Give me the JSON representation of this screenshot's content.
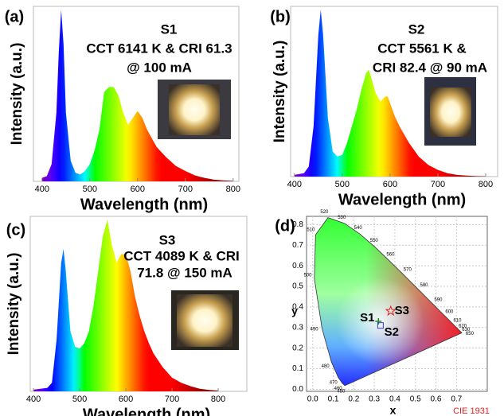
{
  "chart_data": [
    {
      "type": "area",
      "label": "(a)",
      "annotations": [
        "S1",
        "CCT 6141 K & CRI 61.3",
        "@ 100 mA"
      ],
      "x_label": "Wavelength (nm)",
      "y_label": "Intensity (a.u.)",
      "x": [
        400,
        410,
        420,
        430,
        435,
        440,
        445,
        450,
        460,
        470,
        480,
        490,
        500,
        510,
        520,
        530,
        540,
        550,
        560,
        570,
        580,
        590,
        600,
        610,
        620,
        630,
        640,
        650,
        660,
        680,
        700,
        720,
        740,
        760,
        780,
        800
      ],
      "values": [
        0.02,
        0.03,
        0.1,
        0.4,
        0.75,
        1.0,
        0.8,
        0.4,
        0.12,
        0.05,
        0.04,
        0.06,
        0.1,
        0.18,
        0.3,
        0.52,
        0.55,
        0.55,
        0.5,
        0.4,
        0.33,
        0.37,
        0.41,
        0.37,
        0.3,
        0.25,
        0.2,
        0.17,
        0.14,
        0.09,
        0.06,
        0.035,
        0.02,
        0.01,
        0.005,
        0.003
      ],
      "xlim": [
        382,
        812
      ],
      "xticks": [
        400,
        500,
        600,
        700,
        800
      ],
      "ylim": [
        0,
        1.02
      ]
    },
    {
      "type": "area",
      "label": "(b)",
      "annotations": [
        "S2",
        "CCT 5561 K &",
        "CRI 82.4 @ 90 mA"
      ],
      "x_label": "Wavelength (nm)",
      "y_label": "Intensity (a.u.)",
      "x": [
        400,
        420,
        430,
        440,
        450,
        455,
        460,
        470,
        480,
        490,
        500,
        510,
        520,
        530,
        540,
        550,
        555,
        560,
        570,
        580,
        590,
        595,
        600,
        610,
        620,
        630,
        640,
        650,
        660,
        680,
        700,
        720,
        740,
        760,
        780,
        800
      ],
      "values": [
        0.01,
        0.02,
        0.06,
        0.3,
        0.85,
        1.0,
        0.85,
        0.35,
        0.15,
        0.12,
        0.13,
        0.2,
        0.3,
        0.4,
        0.52,
        0.62,
        0.64,
        0.6,
        0.5,
        0.45,
        0.48,
        0.48,
        0.44,
        0.36,
        0.3,
        0.25,
        0.2,
        0.16,
        0.12,
        0.07,
        0.04,
        0.02,
        0.01,
        0.006,
        0.003,
        0.002
      ],
      "xlim": [
        392,
        825
      ],
      "xticks": [
        400,
        500,
        600,
        700,
        800
      ],
      "ylim": [
        0,
        1.02
      ]
    },
    {
      "type": "area",
      "label": "(c)",
      "annotations": [
        "S3",
        "CCT 4089 K & CRI",
        "71.8 @ 150 mA"
      ],
      "x_label": "Wavelength (nm)",
      "y_label": "Intensity (a.u.)",
      "x": [
        400,
        430,
        440,
        450,
        460,
        465,
        470,
        480,
        490,
        500,
        510,
        520,
        530,
        540,
        550,
        560,
        570,
        580,
        590,
        600,
        610,
        620,
        630,
        640,
        650,
        660,
        680,
        700,
        720,
        740,
        760,
        780,
        800
      ],
      "values": [
        0.01,
        0.02,
        0.05,
        0.3,
        0.75,
        0.83,
        0.7,
        0.35,
        0.26,
        0.25,
        0.28,
        0.35,
        0.5,
        0.7,
        0.9,
        1.0,
        0.85,
        0.75,
        0.8,
        0.8,
        0.7,
        0.55,
        0.44,
        0.35,
        0.28,
        0.22,
        0.14,
        0.08,
        0.05,
        0.03,
        0.015,
        0.008,
        0.004
      ],
      "xlim": [
        393,
        862
      ],
      "xticks": [
        400,
        500,
        600,
        700,
        800
      ],
      "ylim": [
        0,
        1.02
      ]
    },
    {
      "type": "cie",
      "label": "(d)",
      "x_label": "x",
      "y_label": "y",
      "note": "CIE 1931",
      "xlim": [
        -0.03,
        0.85
      ],
      "ylim": [
        -0.01,
        0.84
      ],
      "grid": true,
      "xticks": [
        {
          "value": 0,
          "label": "0.0"
        },
        {
          "value": 0.1,
          "label": "0.1"
        },
        {
          "value": 0.2,
          "label": "0.2"
        },
        {
          "value": 0.3,
          "label": "0.3"
        },
        {
          "value": 0.4,
          "label": "0.4"
        },
        {
          "value": 0.5,
          "label": "0.5"
        },
        {
          "value": 0.6,
          "label": "0.6"
        },
        {
          "value": 0.7,
          "label": "0.7"
        }
      ],
      "yticks": [
        {
          "value": 0,
          "label": "0.0"
        },
        0.1,
        0.2,
        0.3,
        0.4,
        0.5,
        0.6,
        0.7,
        0.8
      ],
      "locus": {
        "wavelengths": [
          450,
          460,
          470,
          480,
          490,
          500,
          510,
          520,
          530,
          540,
          550,
          560,
          570,
          580,
          590,
          600,
          610,
          620,
          630,
          650
        ],
        "x": [
          0.1566,
          0.144,
          0.1241,
          0.0913,
          0.0454,
          0.0082,
          0.0139,
          0.0743,
          0.1547,
          0.2296,
          0.3016,
          0.3731,
          0.4441,
          0.5125,
          0.5752,
          0.627,
          0.6658,
          0.6915,
          0.7079,
          0.726
        ],
        "y": [
          0.0177,
          0.0297,
          0.0578,
          0.1327,
          0.295,
          0.5384,
          0.7502,
          0.8338,
          0.8059,
          0.7543,
          0.6923,
          0.6245,
          0.5547,
          0.4866,
          0.4242,
          0.3725,
          0.334,
          0.3083,
          0.292,
          0.274
        ]
      },
      "series": [
        {
          "name": "S1",
          "color": "#1e8c1e",
          "marker": "plus",
          "x": [
            0.32
          ],
          "y": [
            0.33
          ]
        },
        {
          "name": "S2",
          "color": "#3a3ad0",
          "marker": "square",
          "x": [
            0.33
          ],
          "y": [
            0.31
          ]
        },
        {
          "name": "S3",
          "color": "#e02020",
          "marker": "star",
          "x": [
            0.38
          ],
          "y": [
            0.38
          ]
        }
      ]
    }
  ]
}
